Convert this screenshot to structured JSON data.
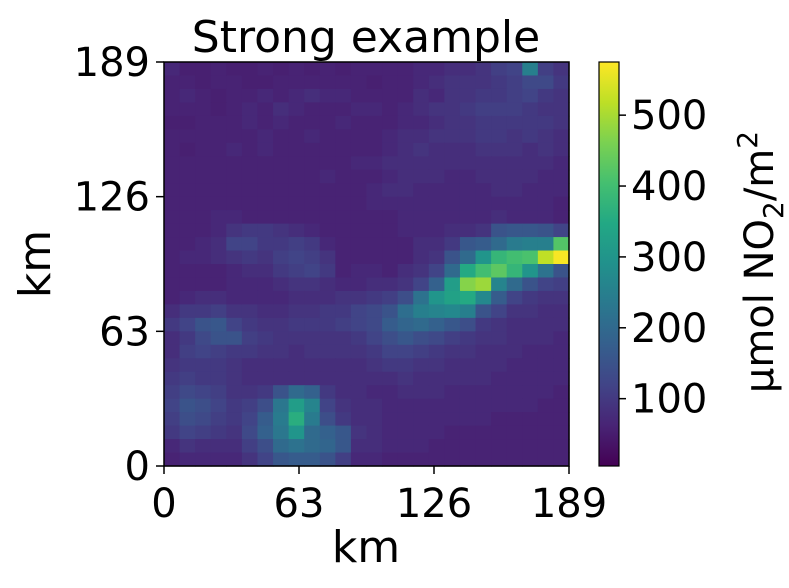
{
  "chart_data": {
    "type": "heatmap",
    "title": "Strong example",
    "xlabel": "km",
    "ylabel": "km",
    "x_ticks": [
      0,
      63,
      126,
      189
    ],
    "y_ticks": [
      0,
      63,
      126,
      189
    ],
    "xlim": [
      0,
      189
    ],
    "ylim": [
      0,
      189
    ],
    "grid": false,
    "colorbar": {
      "label_main": "µmol NO",
      "label_sub": "2",
      "label_tail": "/m",
      "label_sup": "2",
      "ticks": [
        100,
        200,
        300,
        400,
        500
      ],
      "range": [
        5,
        575
      ],
      "colormap": "viridis"
    },
    "cell_km": 7.0,
    "grid_rows_top_to_bottom": [
      [
        70,
        55,
        55,
        60,
        55,
        55,
        60,
        55,
        60,
        55,
        60,
        55,
        60,
        60,
        60,
        60,
        70,
        70,
        80,
        80,
        90,
        110,
        120,
        250,
        110,
        90
      ],
      [
        60,
        60,
        55,
        60,
        60,
        55,
        55,
        60,
        60,
        60,
        60,
        60,
        60,
        55,
        60,
        60,
        70,
        80,
        90,
        90,
        90,
        100,
        110,
        130,
        130,
        100
      ],
      [
        60,
        70,
        60,
        55,
        60,
        60,
        70,
        60,
        70,
        80,
        70,
        70,
        60,
        60,
        60,
        60,
        80,
        70,
        90,
        90,
        100,
        100,
        110,
        120,
        100,
        90
      ],
      [
        60,
        60,
        60,
        55,
        60,
        70,
        60,
        80,
        70,
        60,
        60,
        60,
        70,
        70,
        60,
        70,
        80,
        90,
        90,
        100,
        110,
        110,
        110,
        100,
        90,
        90
      ],
      [
        55,
        55,
        60,
        60,
        60,
        70,
        60,
        70,
        60,
        60,
        60,
        70,
        60,
        60,
        60,
        70,
        70,
        80,
        90,
        90,
        100,
        100,
        100,
        100,
        100,
        90
      ],
      [
        60,
        60,
        60,
        60,
        60,
        60,
        70,
        60,
        60,
        70,
        60,
        60,
        60,
        60,
        70,
        80,
        80,
        90,
        90,
        90,
        100,
        100,
        90,
        100,
        90,
        80
      ],
      [
        60,
        55,
        60,
        60,
        70,
        60,
        70,
        60,
        60,
        60,
        60,
        60,
        60,
        60,
        70,
        80,
        90,
        80,
        80,
        80,
        90,
        90,
        90,
        80,
        90,
        80
      ],
      [
        60,
        60,
        60,
        60,
        60,
        60,
        60,
        60,
        60,
        60,
        60,
        60,
        70,
        70,
        80,
        80,
        80,
        80,
        80,
        80,
        80,
        80,
        80,
        80,
        80,
        70
      ],
      [
        60,
        60,
        60,
        60,
        60,
        60,
        60,
        60,
        60,
        60,
        70,
        60,
        60,
        60,
        70,
        80,
        80,
        80,
        70,
        70,
        80,
        80,
        80,
        80,
        70,
        70
      ],
      [
        60,
        60,
        60,
        60,
        60,
        60,
        60,
        60,
        60,
        60,
        60,
        60,
        60,
        70,
        80,
        80,
        70,
        70,
        70,
        70,
        70,
        80,
        80,
        70,
        70,
        70
      ],
      [
        60,
        60,
        60,
        60,
        60,
        60,
        60,
        60,
        60,
        60,
        60,
        60,
        60,
        70,
        70,
        70,
        70,
        70,
        70,
        70,
        70,
        70,
        70,
        70,
        70,
        60
      ],
      [
        60,
        60,
        60,
        70,
        70,
        60,
        60,
        60,
        60,
        60,
        60,
        60,
        60,
        60,
        60,
        70,
        70,
        70,
        70,
        70,
        70,
        80,
        70,
        70,
        70,
        60
      ],
      [
        60,
        60,
        60,
        70,
        90,
        100,
        100,
        90,
        80,
        70,
        60,
        60,
        60,
        60,
        60,
        70,
        70,
        70,
        80,
        80,
        90,
        150,
        160,
        160,
        150,
        120
      ],
      [
        60,
        60,
        70,
        80,
        120,
        120,
        100,
        100,
        110,
        100,
        70,
        60,
        60,
        60,
        60,
        60,
        80,
        80,
        100,
        160,
        170,
        200,
        240,
        250,
        250,
        420
      ],
      [
        60,
        70,
        70,
        80,
        90,
        100,
        90,
        110,
        120,
        110,
        90,
        60,
        60,
        60,
        60,
        60,
        80,
        90,
        150,
        200,
        300,
        380,
        400,
        410,
        520,
        570
      ],
      [
        60,
        60,
        60,
        60,
        70,
        80,
        80,
        100,
        110,
        120,
        100,
        60,
        70,
        70,
        60,
        80,
        90,
        120,
        200,
        350,
        400,
        430,
        380,
        300,
        220,
        150
      ],
      [
        60,
        60,
        60,
        60,
        70,
        70,
        70,
        80,
        90,
        90,
        80,
        70,
        70,
        80,
        80,
        90,
        120,
        180,
        320,
        470,
        490,
        260,
        200,
        150,
        120,
        110
      ],
      [
        60,
        70,
        80,
        80,
        70,
        70,
        70,
        70,
        80,
        80,
        80,
        90,
        90,
        100,
        110,
        140,
        220,
        300,
        330,
        350,
        270,
        170,
        120,
        100,
        90,
        90
      ],
      [
        80,
        100,
        100,
        110,
        90,
        90,
        80,
        80,
        90,
        90,
        100,
        100,
        120,
        130,
        150,
        210,
        250,
        260,
        270,
        250,
        150,
        120,
        90,
        90,
        80,
        80
      ],
      [
        100,
        120,
        150,
        160,
        120,
        100,
        90,
        90,
        100,
        100,
        100,
        110,
        120,
        130,
        170,
        190,
        200,
        180,
        160,
        140,
        100,
        90,
        80,
        80,
        80,
        80
      ],
      [
        80,
        100,
        130,
        150,
        150,
        110,
        100,
        90,
        90,
        90,
        90,
        90,
        100,
        120,
        140,
        160,
        140,
        130,
        110,
        100,
        90,
        90,
        80,
        80,
        80,
        70
      ],
      [
        80,
        110,
        120,
        110,
        100,
        100,
        90,
        90,
        80,
        90,
        90,
        90,
        90,
        100,
        120,
        120,
        110,
        100,
        90,
        90,
        80,
        80,
        80,
        70,
        70,
        70
      ],
      [
        90,
        100,
        100,
        100,
        90,
        80,
        80,
        80,
        80,
        80,
        80,
        80,
        80,
        90,
        100,
        100,
        90,
        90,
        80,
        80,
        80,
        80,
        70,
        70,
        70,
        70
      ],
      [
        100,
        110,
        100,
        100,
        90,
        80,
        80,
        80,
        80,
        80,
        80,
        80,
        80,
        80,
        80,
        90,
        80,
        80,
        80,
        80,
        80,
        70,
        70,
        70,
        70,
        70
      ],
      [
        110,
        130,
        120,
        110,
        90,
        90,
        100,
        150,
        200,
        180,
        100,
        80,
        80,
        70,
        70,
        80,
        80,
        80,
        70,
        70,
        70,
        70,
        70,
        70,
        70,
        60
      ],
      [
        120,
        150,
        140,
        120,
        100,
        110,
        140,
        230,
        320,
        260,
        120,
        90,
        80,
        80,
        70,
        70,
        70,
        70,
        70,
        70,
        70,
        70,
        70,
        70,
        60,
        60
      ],
      [
        110,
        140,
        130,
        110,
        100,
        120,
        170,
        240,
        360,
        240,
        140,
        100,
        80,
        80,
        70,
        70,
        70,
        70,
        70,
        70,
        70,
        60,
        60,
        60,
        60,
        60
      ],
      [
        100,
        120,
        110,
        100,
        90,
        130,
        180,
        230,
        300,
        200,
        180,
        160,
        90,
        80,
        70,
        70,
        70,
        70,
        60,
        60,
        60,
        60,
        60,
        60,
        60,
        60
      ],
      [
        70,
        90,
        80,
        80,
        80,
        110,
        140,
        200,
        220,
        200,
        190,
        160,
        80,
        80,
        70,
        70,
        70,
        60,
        60,
        60,
        60,
        60,
        60,
        60,
        60,
        60
      ],
      [
        60,
        70,
        70,
        70,
        70,
        90,
        120,
        160,
        170,
        170,
        150,
        110,
        70,
        70,
        60,
        60,
        60,
        60,
        60,
        60,
        60,
        60,
        60,
        60,
        60,
        60
      ]
    ]
  }
}
